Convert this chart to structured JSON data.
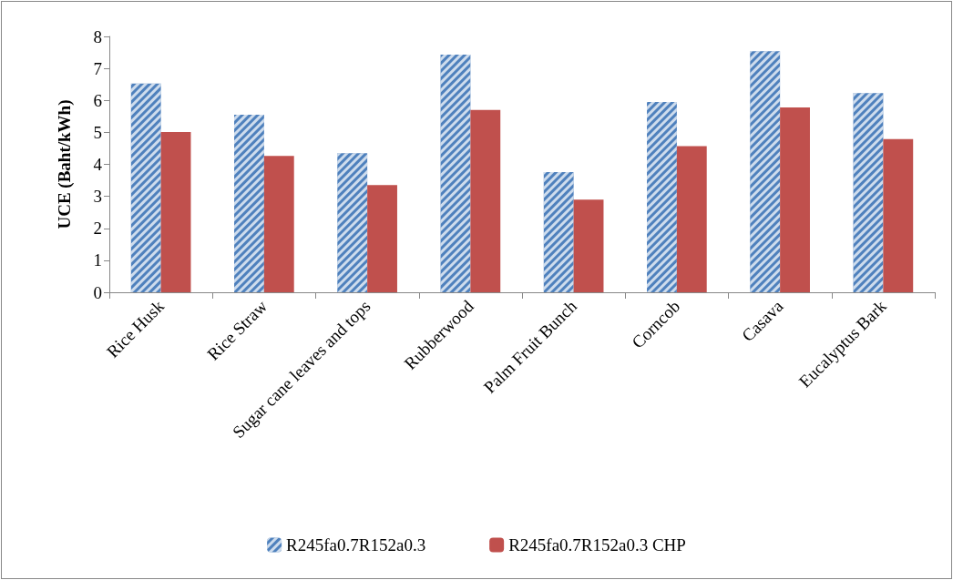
{
  "chart_data": {
    "type": "bar",
    "ylabel": "UCE (Baht/kWh)",
    "categories": [
      "Rice Husk",
      "Rice Straw",
      "Sugar cane leaves and tops",
      "Rubberwood",
      "Palm Fruit Bunch",
      "Corncob",
      "Casava",
      "Eucalyptus Bark"
    ],
    "series": [
      {
        "name": "R245fa0.7R152a0.3",
        "color": "#4f81bd",
        "values": [
          6.53,
          5.55,
          4.35,
          7.43,
          3.76,
          5.95,
          7.54,
          6.23
        ]
      },
      {
        "name": "R245fa0.7R152a0.3 CHP",
        "color": "#c0504d",
        "values": [
          5.01,
          4.26,
          3.35,
          5.7,
          2.9,
          4.57,
          5.78,
          4.79
        ]
      }
    ],
    "ylim": [
      0,
      8
    ],
    "yticks": [
      0,
      1,
      2,
      3,
      4,
      5,
      6,
      7,
      8
    ],
    "grid": false,
    "legend": "bottom"
  }
}
